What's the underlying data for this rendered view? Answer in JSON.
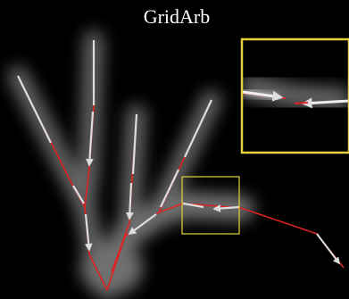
{
  "header": {
    "title": "GridArb"
  }
}
